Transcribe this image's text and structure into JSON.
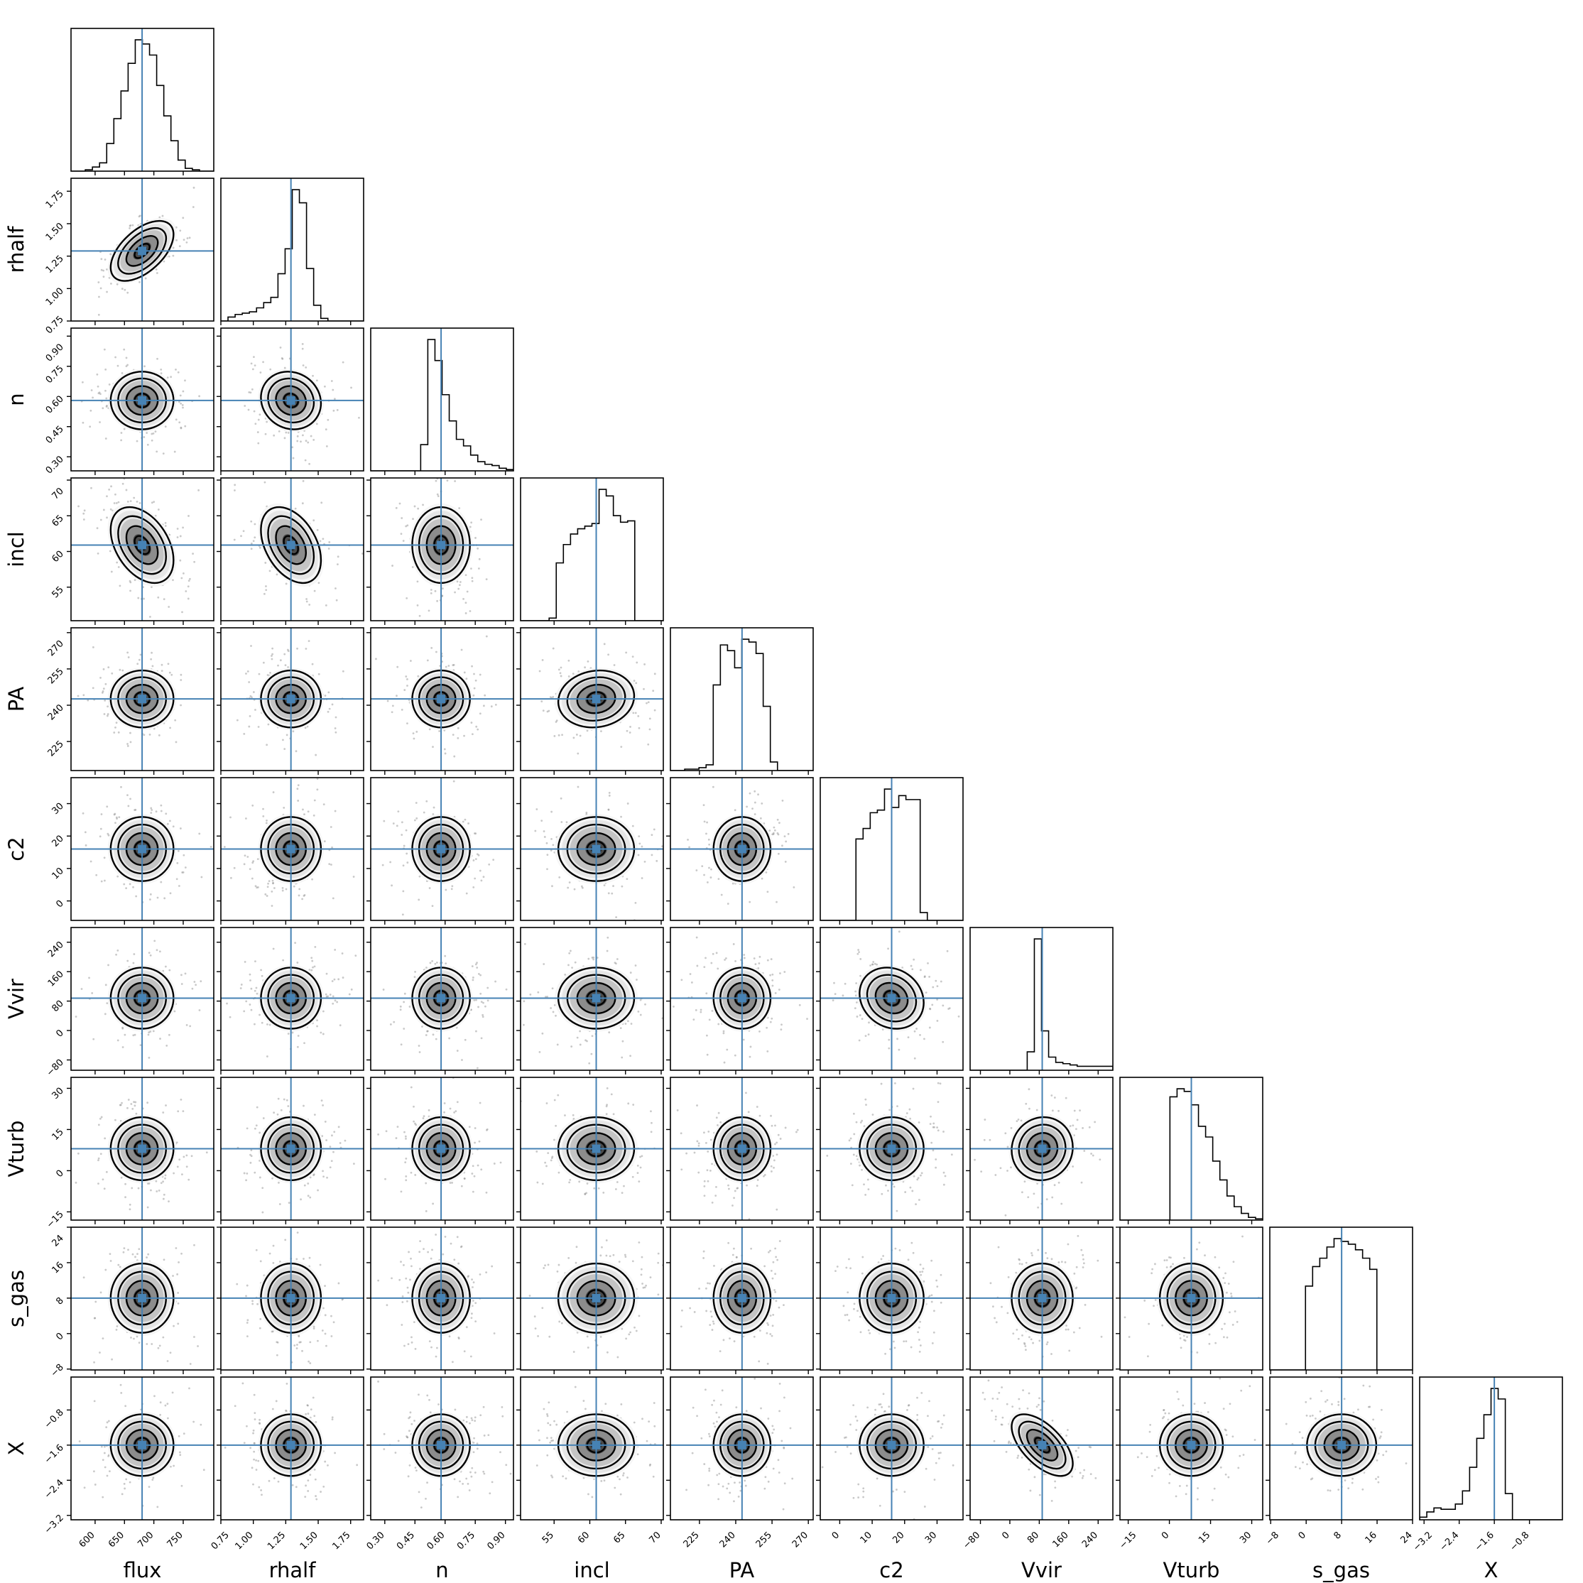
{
  "chart_data": {
    "type": "corner",
    "truth_color": "#4682b4",
    "grid": false,
    "parameters": [
      {
        "label": "flux",
        "range": [
          559,
          802
        ],
        "ticks": [
          600,
          650,
          700,
          750
        ],
        "tick_labels": [
          "600",
          "650",
          "700",
          "750"
        ],
        "truth": 680,
        "hist": [
          0,
          0,
          1,
          3,
          6,
          20,
          38,
          58,
          78,
          95,
          92,
          84,
          62,
          40,
          22,
          8,
          2,
          1,
          0,
          0
        ]
      },
      {
        "label": "rhalf",
        "range": [
          0.75,
          1.85
        ],
        "ticks": [
          0.75,
          1.0,
          1.25,
          1.5,
          1.75
        ],
        "tick_labels": [
          "0.75",
          "1.00",
          "1.25",
          "1.50",
          "1.75"
        ],
        "truth": 1.29,
        "hist": [
          0,
          3,
          5,
          6,
          7,
          10,
          14,
          18,
          36,
          55,
          100,
          90,
          40,
          12,
          2,
          0,
          0,
          0,
          0,
          0
        ]
      },
      {
        "label": "n",
        "range": [
          0.23,
          0.94
        ],
        "ticks": [
          0.3,
          0.45,
          0.6,
          0.75,
          0.9
        ],
        "tick_labels": [
          "0.30",
          "0.45",
          "0.60",
          "0.75",
          "0.90"
        ],
        "truth": 0.58,
        "hist": [
          0,
          0,
          0,
          0,
          0,
          0,
          0,
          20,
          100,
          84,
          58,
          38,
          24,
          19,
          12,
          7,
          5,
          4,
          2,
          1
        ]
      },
      {
        "label": "incl",
        "range": [
          50.3,
          70.3
        ],
        "ticks": [
          55,
          60,
          65,
          70
        ],
        "tick_labels": [
          "55",
          "60",
          "65",
          "70"
        ],
        "truth": 60.9,
        "hist": [
          0,
          0,
          0,
          0,
          2,
          44,
          58,
          66,
          70,
          72,
          74,
          100,
          95,
          80,
          75,
          76,
          0,
          0,
          0,
          0
        ]
      },
      {
        "label": "PA",
        "range": [
          213,
          272
        ],
        "ticks": [
          225,
          240,
          255,
          270
        ],
        "tick_labels": [
          "225",
          "240",
          "255",
          "270"
        ],
        "truth": 242.6,
        "hist": [
          0,
          0,
          1,
          1,
          2,
          4,
          60,
          88,
          84,
          72,
          92,
          90,
          82,
          45,
          6,
          0,
          0,
          0,
          0,
          0
        ]
      },
      {
        "label": "c2",
        "range": [
          -6,
          38
        ],
        "ticks": [
          0,
          10,
          20,
          30
        ],
        "tick_labels": [
          "0",
          "10",
          "20",
          "30"
        ],
        "truth": 16,
        "hist": [
          0,
          0,
          0,
          0,
          0,
          62,
          70,
          82,
          84,
          100,
          86,
          95,
          92,
          92,
          6,
          0,
          0,
          0,
          0,
          0
        ]
      },
      {
        "label": "Vvir",
        "range": [
          -108,
          280
        ],
        "ticks": [
          -80,
          0,
          80,
          160,
          240
        ],
        "tick_labels": [
          "−80",
          "0",
          "80",
          "160",
          "240"
        ],
        "truth": 88,
        "hist": [
          0,
          0,
          0,
          0,
          0,
          0,
          0,
          0,
          14,
          100,
          30,
          10,
          6,
          5,
          4,
          3,
          3,
          3,
          3,
          3
        ]
      },
      {
        "label": "Vturb",
        "range": [
          -18,
          34
        ],
        "ticks": [
          -15,
          0,
          15,
          30
        ],
        "tick_labels": [
          "−15",
          "0",
          "15",
          "30"
        ],
        "truth": 8,
        "hist": [
          0,
          0,
          0,
          0,
          0,
          0,
          0,
          92,
          98,
          96,
          86,
          70,
          62,
          44,
          30,
          18,
          10,
          5,
          2,
          1
        ]
      },
      {
        "label": "s_gas",
        "range": [
          -8.2,
          24
        ],
        "ticks": [
          -8,
          0,
          8,
          16,
          24
        ],
        "tick_labels": [
          "−8",
          "0",
          "8",
          "16",
          "24"
        ],
        "truth": 8,
        "hist": [
          0,
          0,
          0,
          0,
          0,
          60,
          74,
          80,
          88,
          94,
          92,
          90,
          86,
          80,
          72,
          0,
          0,
          0,
          0,
          0
        ]
      },
      {
        "label": "X",
        "range": [
          -3.3,
          -0.05
        ],
        "ticks": [
          -3.2,
          -2.4,
          -1.6,
          -0.8
        ],
        "tick_labels": [
          "−3.2",
          "−2.4",
          "−1.6",
          "−0.8"
        ],
        "truth": -1.6,
        "hist": [
          2,
          6,
          9,
          8,
          8,
          12,
          22,
          40,
          62,
          80,
          100,
          92,
          20,
          0,
          0,
          0,
          0,
          0,
          0,
          0
        ]
      }
    ]
  }
}
